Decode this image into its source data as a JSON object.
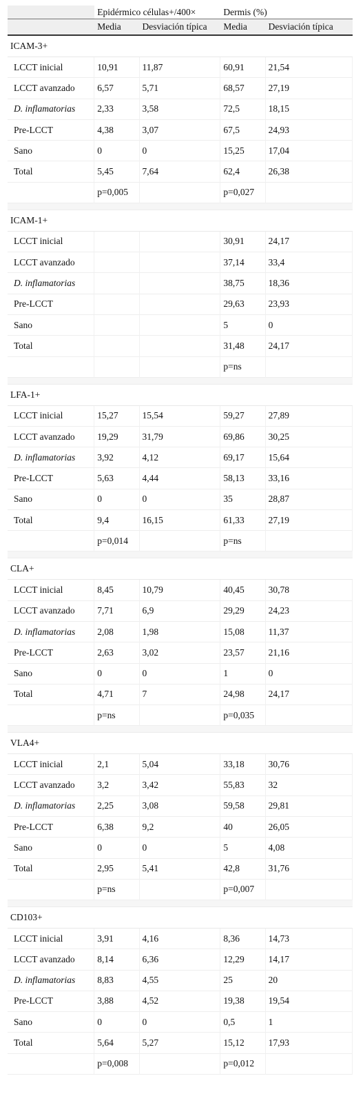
{
  "header": {
    "group1": "Epidérmico células+/400×",
    "group2": "Dermis (%)",
    "sub": [
      "Media",
      "Desviación típica",
      "Media",
      "Desviación típica"
    ]
  },
  "sections": [
    {
      "title": "ICAM-3+",
      "rows": [
        {
          "label": "LCCT inicial",
          "italic": false,
          "values": [
            "10,91",
            "11,87",
            "60,91",
            "21,54"
          ]
        },
        {
          "label": "LCCT avanzado",
          "italic": false,
          "values": [
            "6,57",
            "5,71",
            "68,57",
            "27,19"
          ]
        },
        {
          "label": "D. inflamatorias",
          "italic": true,
          "values": [
            "2,33",
            "3,58",
            "72,5",
            "18,15"
          ]
        },
        {
          "label": "Pre-LCCT",
          "italic": false,
          "values": [
            "4,38",
            "3,07",
            "67,5",
            "24,93"
          ]
        },
        {
          "label": "Sano",
          "italic": false,
          "values": [
            "0",
            "0",
            "15,25",
            "17,04"
          ]
        },
        {
          "label": "Total",
          "italic": false,
          "values": [
            "5,45",
            "7,64",
            "62,4",
            "26,38"
          ]
        }
      ],
      "p": [
        "p=0,005",
        "p=0,027"
      ]
    },
    {
      "title": "ICAM-1+",
      "rows": [
        {
          "label": "LCCT inicial",
          "italic": false,
          "values": [
            "",
            "",
            "30,91",
            "24,17"
          ]
        },
        {
          "label": "LCCT avanzado",
          "italic": false,
          "values": [
            "",
            "",
            "37,14",
            "33,4"
          ]
        },
        {
          "label": "D. inflamatorias",
          "italic": true,
          "values": [
            "",
            "",
            "38,75",
            "18,36"
          ]
        },
        {
          "label": "Pre-LCCT",
          "italic": false,
          "values": [
            "",
            "",
            "29,63",
            "23,93"
          ]
        },
        {
          "label": "Sano",
          "italic": false,
          "values": [
            "",
            "",
            "5",
            "0"
          ]
        },
        {
          "label": "Total",
          "italic": false,
          "values": [
            "",
            "",
            "31,48",
            "24,17"
          ]
        }
      ],
      "p": [
        "",
        "p=ns"
      ]
    },
    {
      "title": "LFA-1+",
      "rows": [
        {
          "label": "LCCT inicial",
          "italic": false,
          "values": [
            "15,27",
            "15,54",
            "59,27",
            "27,89"
          ]
        },
        {
          "label": "LCCT avanzado",
          "italic": false,
          "values": [
            "19,29",
            "31,79",
            "69,86",
            "30,25"
          ]
        },
        {
          "label": "D. inflamatorias",
          "italic": true,
          "values": [
            "3,92",
            "4,12",
            "69,17",
            "15,64"
          ]
        },
        {
          "label": "Pre-LCCT",
          "italic": false,
          "values": [
            "5,63",
            "4,44",
            "58,13",
            "33,16"
          ]
        },
        {
          "label": "Sano",
          "italic": false,
          "values": [
            "0",
            "0",
            "35",
            "28,87"
          ]
        },
        {
          "label": "Total",
          "italic": false,
          "values": [
            "9,4",
            "16,15",
            "61,33",
            "27,19"
          ]
        }
      ],
      "p": [
        "p=0,014",
        "p=ns"
      ]
    },
    {
      "title": "CLA+",
      "rows": [
        {
          "label": "LCCT inicial",
          "italic": false,
          "values": [
            "8,45",
            "10,79",
            "40,45",
            "30,78"
          ]
        },
        {
          "label": "LCCT avanzado",
          "italic": false,
          "values": [
            "7,71",
            "6,9",
            "29,29",
            "24,23"
          ]
        },
        {
          "label": "D. inflamatorias",
          "italic": true,
          "values": [
            "2,08",
            "1,98",
            "15,08",
            "11,37"
          ]
        },
        {
          "label": "Pre-LCCT",
          "italic": false,
          "values": [
            "2,63",
            "3,02",
            "23,57",
            "21,16"
          ]
        },
        {
          "label": "Sano",
          "italic": false,
          "values": [
            "0",
            "0",
            "1",
            "0"
          ]
        },
        {
          "label": "Total",
          "italic": false,
          "values": [
            "4,71",
            "7",
            "24,98",
            "24,17"
          ]
        }
      ],
      "p": [
        "p=ns",
        "p=0,035"
      ]
    },
    {
      "title": "VLA4+",
      "rows": [
        {
          "label": "LCCT inicial",
          "italic": false,
          "values": [
            "2,1",
            "5,04",
            "33,18",
            "30,76"
          ]
        },
        {
          "label": "LCCT avanzado",
          "italic": false,
          "values": [
            "3,2",
            "3,42",
            "55,83",
            "32"
          ]
        },
        {
          "label": "D. inflamatorias",
          "italic": true,
          "values": [
            "2,25",
            "3,08",
            "59,58",
            "29,81"
          ]
        },
        {
          "label": "Pre-LCCT",
          "italic": false,
          "values": [
            "6,38",
            "9,2",
            "40",
            "26,05"
          ]
        },
        {
          "label": "Sano",
          "italic": false,
          "values": [
            "0",
            "0",
            "5",
            "4,08"
          ]
        },
        {
          "label": "Total",
          "italic": false,
          "values": [
            "2,95",
            "5,41",
            "42,8",
            "31,76"
          ]
        }
      ],
      "p": [
        "p=ns",
        "p=0,007"
      ]
    },
    {
      "title": "CD103+",
      "rows": [
        {
          "label": "LCCT inicial",
          "italic": false,
          "values": [
            "3,91",
            "4,16",
            "8,36",
            "14,73"
          ]
        },
        {
          "label": "LCCT avanzado",
          "italic": false,
          "values": [
            "8,14",
            "6,36",
            "12,29",
            "14,17"
          ]
        },
        {
          "label": "D. inflamatorias",
          "italic": true,
          "values": [
            "8,83",
            "4,55",
            "25",
            "20"
          ]
        },
        {
          "label": "Pre-LCCT",
          "italic": false,
          "values": [
            "3,88",
            "4,52",
            "19,38",
            "19,54"
          ]
        },
        {
          "label": "Sano",
          "italic": false,
          "values": [
            "0",
            "0",
            "0,5",
            "1"
          ]
        },
        {
          "label": "Total",
          "italic": false,
          "values": [
            "5,64",
            "5,27",
            "15,12",
            "17,93"
          ]
        }
      ],
      "p": [
        "p=0,008",
        "p=0,012"
      ]
    }
  ]
}
